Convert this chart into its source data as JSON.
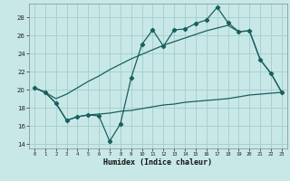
{
  "xlabel": "Humidex (Indice chaleur)",
  "bg_color": "#c8e8e8",
  "grid_color": "#a8d0d0",
  "line_color": "#1a5f5f",
  "xlim": [
    -0.5,
    23.5
  ],
  "ylim": [
    13.5,
    29.5
  ],
  "yticks": [
    14,
    16,
    18,
    20,
    22,
    24,
    26,
    28
  ],
  "xticks": [
    0,
    1,
    2,
    3,
    4,
    5,
    6,
    7,
    8,
    9,
    10,
    11,
    12,
    13,
    14,
    15,
    16,
    17,
    18,
    19,
    20,
    21,
    22,
    23
  ],
  "x": [
    0,
    1,
    2,
    3,
    4,
    5,
    6,
    7,
    8,
    9,
    10,
    11,
    12,
    13,
    14,
    15,
    16,
    17,
    18,
    19,
    20,
    21,
    22,
    23
  ],
  "y_main": [
    20.2,
    19.7,
    18.5,
    16.6,
    17.0,
    17.2,
    17.1,
    14.3,
    16.2,
    21.3,
    25.0,
    26.6,
    24.8,
    26.6,
    26.7,
    27.3,
    27.7,
    29.1,
    27.4,
    26.4,
    26.5,
    23.3,
    21.8,
    19.7
  ],
  "y_upper": [
    20.2,
    19.7,
    19.0,
    19.5,
    20.2,
    20.9,
    21.5,
    22.2,
    22.8,
    23.4,
    23.9,
    24.4,
    24.9,
    25.3,
    25.7,
    26.1,
    26.5,
    26.8,
    27.1,
    26.4,
    26.5,
    23.3,
    21.8,
    19.7
  ],
  "y_lower": [
    20.2,
    19.7,
    18.5,
    16.6,
    17.0,
    17.2,
    17.3,
    17.4,
    17.6,
    17.7,
    17.9,
    18.1,
    18.3,
    18.4,
    18.6,
    18.7,
    18.8,
    18.9,
    19.0,
    19.2,
    19.4,
    19.5,
    19.6,
    19.7
  ]
}
